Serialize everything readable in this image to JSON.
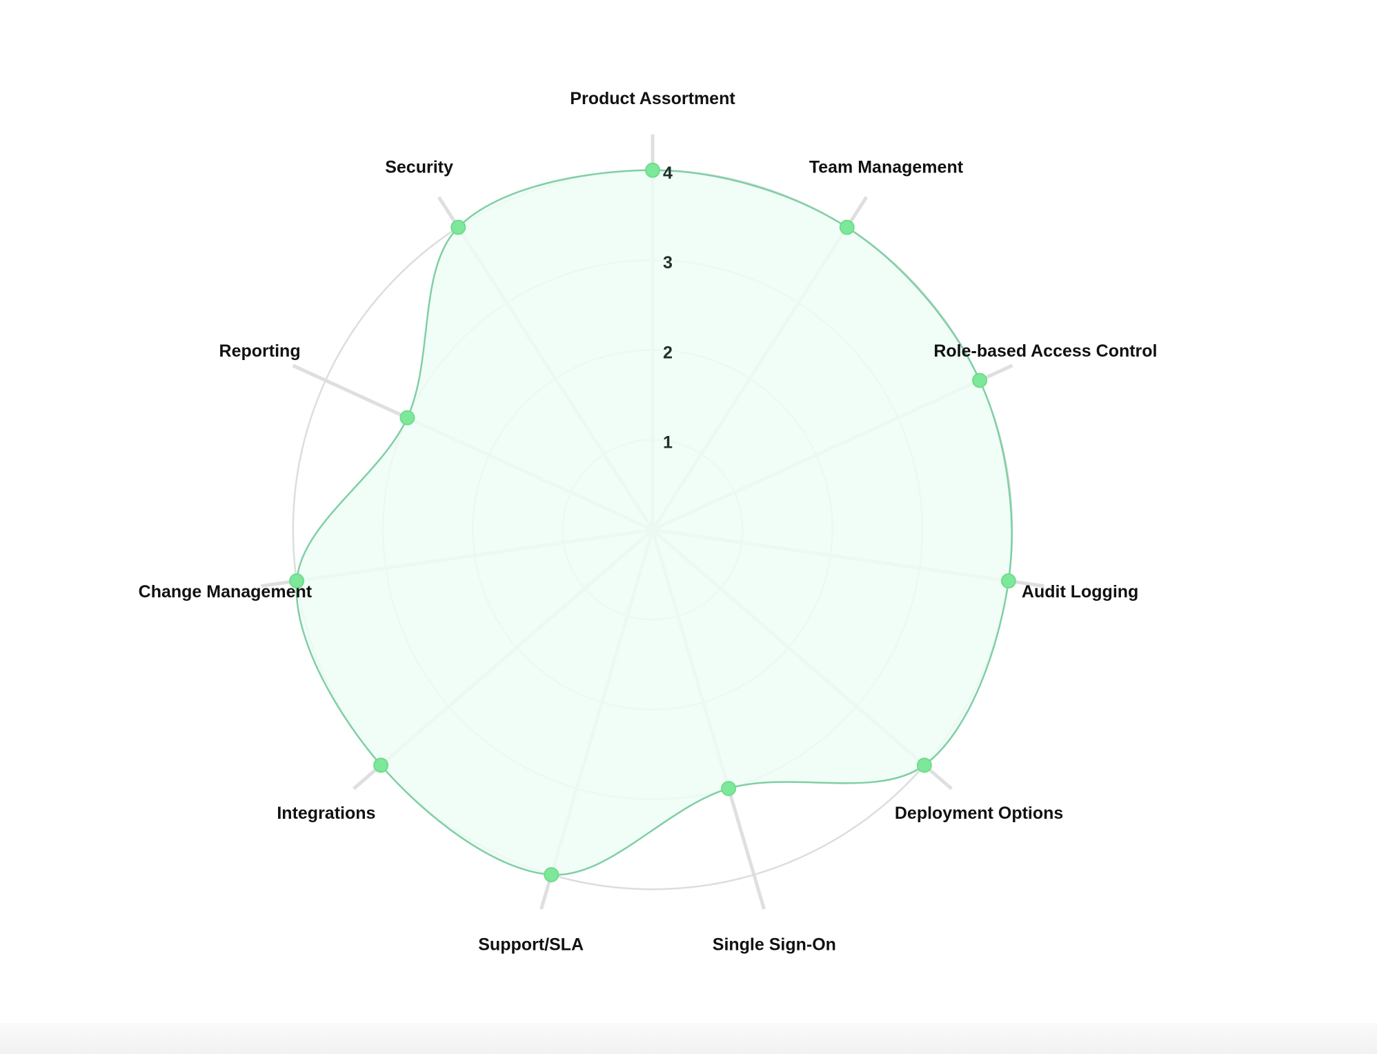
{
  "chart_data": {
    "type": "radar",
    "categories": [
      "Product Assortment",
      "Team Management",
      "Role-based Access Control",
      "Audit Logging",
      "Deployment Options",
      "Single Sign-On",
      "Support/SLA",
      "Integrations",
      "Change Management",
      "Reporting",
      "Security"
    ],
    "series": [
      {
        "values": [
          4,
          4,
          4,
          4,
          4,
          3,
          4,
          4,
          4,
          3,
          4
        ]
      }
    ],
    "radial_ticks": [
      "1",
      "2",
      "3",
      "4"
    ],
    "rlim": [
      0,
      4
    ],
    "grid": true,
    "curve": "smooth",
    "colors": {
      "line": "#7fcfa4",
      "fill": "#eefdf6",
      "point": "#7ee89a",
      "grid": "#dddddd",
      "axis": "#dcdcdc"
    }
  }
}
